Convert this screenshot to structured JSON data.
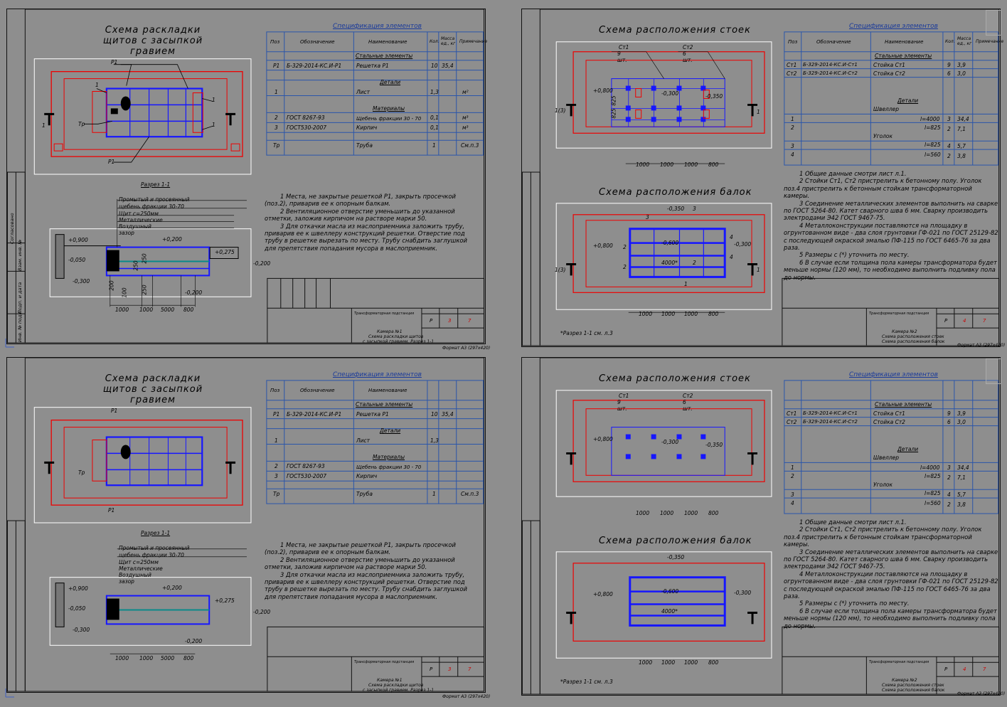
{
  "sheets": [
    {
      "title": "Схема раскладки щитов с засыпкой гравием",
      "spec_title": "Спецификация элементов",
      "spec_headers": [
        "Поз",
        "Обозначение",
        "Наименование",
        "Кол.",
        "Масса ед., кг",
        "Примечание"
      ],
      "spec_rows": [
        {
          "pos": "",
          "des": "",
          "name": "Стальные элементы",
          "qty": "",
          "mass": "",
          "note": ""
        },
        {
          "pos": "Р1",
          "des": "Б-329-2014-КС.И-Р1",
          "name": "Решетка Р1",
          "qty": "10",
          "mass": "35,4",
          "note": ""
        },
        {
          "pos": "",
          "des": "",
          "name": "Детали",
          "qty": "",
          "mass": "",
          "note": ""
        },
        {
          "pos": "1",
          "des": "",
          "name": "Лист",
          "qty": "1,3",
          "mass": "",
          "note": "м²"
        },
        {
          "pos": "",
          "des": "",
          "name": "Материалы",
          "qty": "",
          "mass": "",
          "note": ""
        },
        {
          "pos": "2",
          "des": "ГОСТ 8267-93",
          "name": "Щебень фракции 30 - 70",
          "qty": "0,1",
          "mass": "",
          "note": "м³"
        },
        {
          "pos": "3",
          "des": "ГОСТ530-2007",
          "name": "Кирпич",
          "qty": "0,1",
          "mass": "",
          "note": "м³"
        },
        {
          "pos": "Тр",
          "des": "",
          "name": "Труба",
          "qty": "1",
          "mass": "",
          "note": "См.п.3"
        }
      ],
      "section_label": "Разрез 1-1",
      "layer_labels": [
        "Промытый и просеянный",
        "щебень фракции 30-70",
        "Щит с=250мм",
        "Металлические",
        "Воздушный",
        "зазор"
      ],
      "plan_labels": {
        "p1": "Р1",
        "p1b": "Р1",
        "tr": "Тр",
        "one": "1",
        "one_b": "1",
        "one_c": "1",
        "one_d": "1"
      },
      "section_dims": [
        "1000",
        "1000",
        "5000",
        "800"
      ],
      "levels": [
        "+0,900",
        "-0,050",
        "-0,300",
        "+0,200",
        "-0,200",
        "-0,200",
        "+0,275"
      ],
      "section_vert": [
        "250",
        "250",
        "100",
        "200",
        "250"
      ],
      "notes": [
        "1 Места, не закрытые решеткой Р1, закрыть просечкой (поз.2), приварив ее к опорным балкам.",
        "2 Вентиляционное отверстие уменьшить до указанной отметки, заложив кирпичом на растворе марки 50.",
        "3 Для откачки масла из маслоприемника заложить трубу, приварив ее к швеллеру конструкций решетки. Отверстие под трубу в решетке вырезать по месту. Трубу снабдить заглушкой для препятствия попадания мусора в маслоприемник."
      ],
      "stamp_text": [
        "Трансформаторная подстанция",
        "Камера №1",
        "Схема раскладки щитов",
        "с засыпкой гравием. Разрез 1-1"
      ],
      "stamp_stage": "Р",
      "stamp_sheet": "3",
      "stamp_sheets": "7",
      "format": "Формат А3 (297х420)",
      "side_labels": [
        "Согласовано",
        "Взам. инв. №",
        "Подп. и дата",
        "Инв. № подл."
      ]
    },
    {
      "title": "Схема расположения стоек",
      "title2": "Схема расположения балок",
      "spec_title": "Спецификация элементов",
      "spec_headers": [
        "Поз",
        "Обозначение",
        "Наименование",
        "Кол.",
        "Масса ед., кг",
        "Примечание"
      ],
      "spec_rows": [
        {
          "pos": "",
          "des": "",
          "name": "Стальные элементы",
          "qty": "",
          "mass": ""
        },
        {
          "pos": "Ст1",
          "des": "Б-329-2014-КС.И-Ст1",
          "name": "Стойка Ст1",
          "qty": "9",
          "mass": "3,9"
        },
        {
          "pos": "Ст2",
          "des": "Б-329-2014-КС.И-Ст2",
          "name": "Стойка Ст2",
          "qty": "6",
          "mass": "3,0"
        },
        {
          "pos": "",
          "des": "",
          "name": "Детали",
          "qty": "",
          "mass": ""
        },
        {
          "pos": "",
          "des": "",
          "name": "Швеллер",
          "qty": "",
          "mass": ""
        },
        {
          "pos": "1",
          "des": "",
          "name": "l=4000",
          "qty": "3",
          "mass": "34,4"
        },
        {
          "pos": "2",
          "des": "",
          "name": "l=825",
          "qty": "2",
          "mass": "7,1"
        },
        {
          "pos": "",
          "des": "",
          "name": "Уголок",
          "qty": "",
          "mass": ""
        },
        {
          "pos": "3",
          "des": "",
          "name": "l=825",
          "qty": "4",
          "mass": "5,7"
        },
        {
          "pos": "4",
          "des": "",
          "name": "l=560",
          "qty": "2",
          "mass": "3,8"
        }
      ],
      "plan_labels": {
        "st1": "Ст1",
        "st2": "Ст2",
        "n9": "9",
        "n6": "6",
        "sht": "шт.",
        "sht2": "шт."
      },
      "dims": [
        "1000",
        "1000",
        "1000",
        "800"
      ],
      "vert_dims": [
        "825",
        "825"
      ],
      "section_mark": "1(3)",
      "section_mark_r": "1",
      "levels": [
        "+0,800",
        "-0,300",
        "-0,350",
        "-0,350",
        "+0,800",
        "-0,600",
        "-0,300",
        "-0,300"
      ],
      "beam_label": "4000*",
      "beam_pos": [
        "3",
        "3",
        "2",
        "2",
        "2",
        "1",
        "4",
        "4"
      ],
      "footnote": "*Разрез 1-1 см. л.3",
      "notes": [
        "1 Общие данные смотри лист л.1.",
        "2 Стойки Ст1, Ст2 пристрелить к бетонному полу. Уголок поз.4 пристрелить к бетонным стойкам трансформаторной камеры.",
        "3 Соединение металлических элементов выполнить на сварке по ГОСТ 5264-80. Катет сварного шва 6 мм. Сварку производить электродами Э42 ГОСТ 9467-75.",
        "4 Металлоконструкции поставляются на площадку в огрунтованном виде - два слоя грунтовки ГФ-021 по ГОСТ 25129-82 с последующей окраской эмалью ПФ-115 по ГОСТ 6465-76 за два раза.",
        "5 Размеры с (*) уточнить по месту.",
        "6 В случае если толщина пола камеры трансформатора будет меньше нормы (120 мм), то необходимо выполнить подливку пола до нормы."
      ],
      "stamp_text": [
        "Трансформаторная подстанция",
        "Камера №2",
        "Схема расположения стоек",
        "Схема расположения балок"
      ],
      "stamp_stage": "Р",
      "stamp_sheet": "4",
      "stamp_sheets": "7",
      "format": "Формат А3 (297х420)",
      "side_labels": [
        "Согласовано",
        "Взам. инв. №",
        "Подп. и дата",
        "Инв. № подл."
      ]
    }
  ],
  "colors": {
    "background": "#8e8e8e",
    "paper": "#808080",
    "red": "#e00000",
    "blue": "#1616ff",
    "white": "#ffffff",
    "spec_blue": "#2a55aa"
  }
}
